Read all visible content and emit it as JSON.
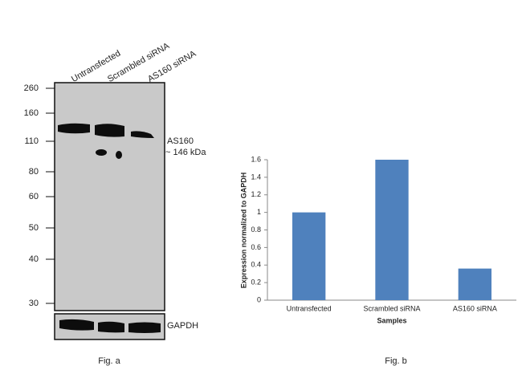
{
  "blot": {
    "lanes": [
      "Untransfected",
      "Scrambled siRNA",
      "AS160 siRNA"
    ],
    "markers": [
      260,
      160,
      110,
      80,
      60,
      50,
      40,
      30
    ],
    "target": "AS160",
    "target_size": "~ 146 kDa",
    "control": "GAPDH",
    "caption": "Fig. a"
  },
  "chart_data": {
    "type": "bar",
    "ylabel": "Expression normalized to GAPDH",
    "xlabel": "Samples",
    "caption": "Fig. b",
    "categories": [
      "Untransfected",
      "Scrambled siRNA",
      "AS160 siRNA"
    ],
    "values": [
      1,
      1.6,
      0.36
    ],
    "color": "#4f81bd",
    "ylim": [
      0,
      1.6
    ],
    "yticks": [
      0,
      0.2,
      0.4,
      0.6,
      0.8,
      1,
      1.2,
      1.4,
      1.6
    ]
  }
}
